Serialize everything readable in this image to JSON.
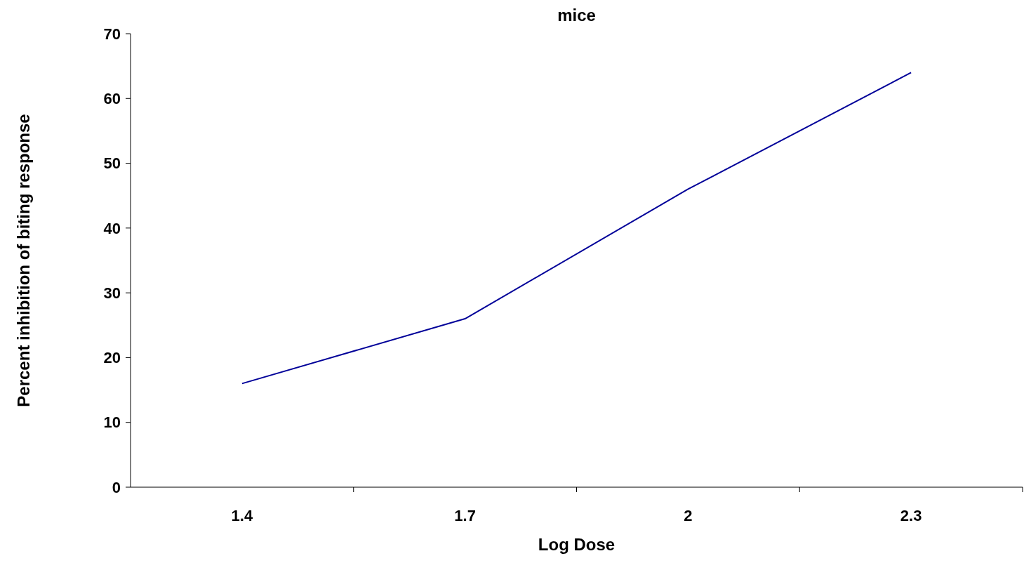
{
  "chart_data": {
    "type": "line",
    "title": "mice",
    "xlabel": "Log Dose",
    "ylabel": "Percent inhibition of biting response",
    "categories": [
      "1.4",
      "1.7",
      "2",
      "2.3"
    ],
    "series": [
      {
        "color": "#000099",
        "values": [
          16,
          26,
          46,
          64
        ]
      }
    ],
    "ylim": [
      0,
      70
    ],
    "yticks": [
      0,
      10,
      20,
      30,
      40,
      50,
      60,
      70
    ],
    "grid": false,
    "marker": "none",
    "line_style": "solid"
  }
}
